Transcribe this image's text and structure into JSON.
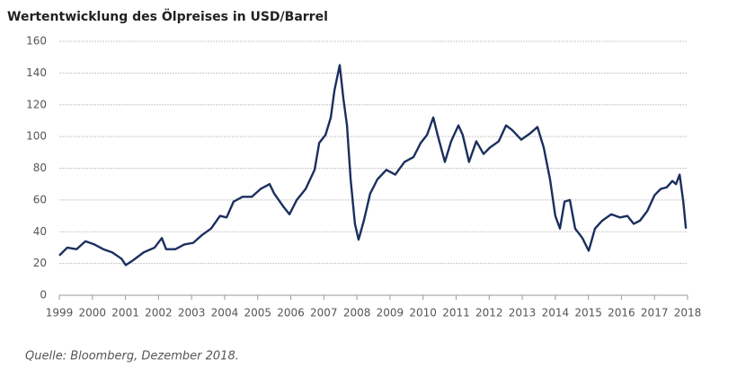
{
  "chart_data": {
    "type": "line",
    "title": "Wertentwicklung des Ölpreises in USD/Barrel",
    "source": "Quelle: Bloomberg, Dezember 2018.",
    "x": [
      1999.0,
      1999.24,
      1999.52,
      1999.79,
      2000.06,
      2000.33,
      2000.6,
      2000.88,
      2001.01,
      2001.23,
      2001.55,
      2001.88,
      2002.1,
      2002.23,
      2002.51,
      2002.78,
      2003.05,
      2003.32,
      2003.59,
      2003.86,
      2004.06,
      2004.27,
      2004.54,
      2004.82,
      2005.09,
      2005.36,
      2005.5,
      2005.77,
      2005.96,
      2006.18,
      2006.45,
      2006.72,
      2006.86,
      2007.05,
      2007.21,
      2007.32,
      2007.48,
      2007.59,
      2007.7,
      2007.81,
      2007.94,
      2008.05,
      2008.21,
      2008.4,
      2008.62,
      2008.89,
      2009.16,
      2009.44,
      2009.71,
      2009.93,
      2010.12,
      2010.31,
      2010.44,
      2010.66,
      2010.85,
      2011.07,
      2011.2,
      2011.39,
      2011.61,
      2011.83,
      2012.02,
      2012.29,
      2012.51,
      2012.7,
      2012.97,
      2013.24,
      2013.46,
      2013.65,
      2013.84,
      2014.0,
      2014.14,
      2014.28,
      2014.44,
      2014.6,
      2014.82,
      2015.01,
      2015.2,
      2015.42,
      2015.69,
      2015.96,
      2016.18,
      2016.37,
      2016.56,
      2016.78,
      2017.0,
      2017.19,
      2017.37,
      2017.54,
      2017.65,
      2017.76,
      2017.87,
      2017.95
    ],
    "series": [
      {
        "name": "Ölpreis",
        "color": "#1b2f5e",
        "values": [
          25,
          30,
          29,
          34,
          32,
          29,
          27,
          23,
          19,
          22,
          27,
          30,
          36,
          29,
          29,
          32,
          33,
          38,
          42,
          50,
          49,
          59,
          62,
          62,
          67,
          70,
          64,
          56,
          51,
          60,
          67,
          79,
          96,
          101,
          112,
          129,
          145,
          124,
          107,
          73,
          45,
          35,
          47,
          64,
          73,
          79,
          76,
          84,
          87,
          96,
          101,
          112,
          101,
          84,
          97,
          107,
          101,
          84,
          97,
          89,
          93,
          97,
          107,
          104,
          98,
          102,
          106,
          93,
          73,
          50,
          42,
          59,
          60,
          42,
          36,
          28,
          42,
          47,
          51,
          49,
          50,
          45,
          47,
          53,
          63,
          67,
          68,
          72,
          70,
          76,
          59,
          42
        ]
      }
    ],
    "xlim": [
      1999,
      2018
    ],
    "xticks": [
      1999,
      2000,
      2001,
      2002,
      2003,
      2004,
      2005,
      2006,
      2007,
      2008,
      2009,
      2010,
      2011,
      2012,
      2013,
      2014,
      2015,
      2016,
      2017,
      2018
    ],
    "ylim": [
      0,
      160
    ],
    "yticks": [
      0,
      20,
      40,
      60,
      80,
      100,
      120,
      140,
      160
    ],
    "grid": true
  }
}
